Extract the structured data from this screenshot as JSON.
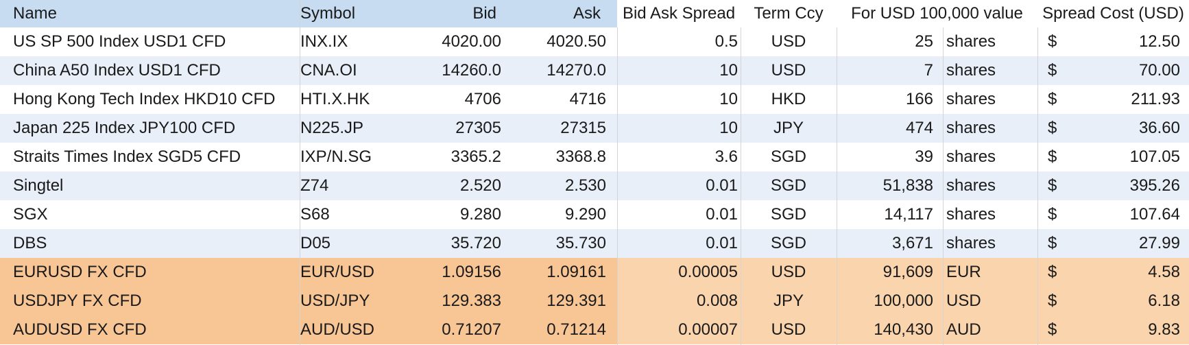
{
  "colors": {
    "header_left_bg": "#c7dbf1",
    "header_right_bg": "#ffffff",
    "stripe_blue": "#e9eff8",
    "white": "#ffffff",
    "fx_left_bg": "#f8c595",
    "fx_right_bg": "#fad4ac",
    "gridline": "#d4d4d4"
  },
  "headers": {
    "name": "Name",
    "symbol": "Symbol",
    "bid": "Bid",
    "ask": "Ask",
    "spread": "Bid Ask Spread",
    "term": "Term Ccy",
    "value": "For USD 100,000 value",
    "cost": "Spread Cost (USD)"
  },
  "rows": [
    {
      "name": "US SP 500 Index USD1 CFD",
      "symbol": "INX.IX",
      "bid": "4020.00",
      "ask": "4020.50",
      "spread": "0.5",
      "term": "USD",
      "qty": "25",
      "unit": "shares",
      "cur": "$",
      "cost": "12.50",
      "style": "white"
    },
    {
      "name": "China A50 Index USD1 CFD",
      "symbol": "CNA.OI",
      "bid": "14260.0",
      "ask": "14270.0",
      "spread": "10",
      "term": "USD",
      "qty": "7",
      "unit": "shares",
      "cur": "$",
      "cost": "70.00",
      "style": "blue"
    },
    {
      "name": "Hong Kong Tech Index HKD10 CFD",
      "symbol": "HTI.X.HK",
      "bid": "4706",
      "ask": "4716",
      "spread": "10",
      "term": "HKD",
      "qty": "166",
      "unit": "shares",
      "cur": "$",
      "cost": "211.93",
      "style": "white"
    },
    {
      "name": "Japan 225 Index JPY100 CFD",
      "symbol": "N225.JP",
      "bid": "27305",
      "ask": "27315",
      "spread": "10",
      "term": "JPY",
      "qty": "474",
      "unit": "shares",
      "cur": "$",
      "cost": "36.60",
      "style": "blue"
    },
    {
      "name": "Straits Times Index SGD5 CFD",
      "symbol": "IXP/N.SG",
      "bid": "3365.2",
      "ask": "3368.8",
      "spread": "3.6",
      "term": "SGD",
      "qty": "39",
      "unit": "shares",
      "cur": "$",
      "cost": "107.05",
      "style": "white"
    },
    {
      "name": "Singtel",
      "symbol": "Z74",
      "bid": "2.520",
      "ask": "2.530",
      "spread": "0.01",
      "term": "SGD",
      "qty": "51,838",
      "unit": "shares",
      "cur": "$",
      "cost": "395.26",
      "style": "blue"
    },
    {
      "name": "SGX",
      "symbol": "S68",
      "bid": "9.280",
      "ask": "9.290",
      "spread": "0.01",
      "term": "SGD",
      "qty": "14,117",
      "unit": "shares",
      "cur": "$",
      "cost": "107.64",
      "style": "white"
    },
    {
      "name": "DBS",
      "symbol": "D05",
      "bid": "35.720",
      "ask": "35.730",
      "spread": "0.01",
      "term": "SGD",
      "qty": "3,671",
      "unit": "shares",
      "cur": "$",
      "cost": "27.99",
      "style": "blue"
    },
    {
      "name": "EURUSD FX CFD",
      "symbol": "EUR/USD",
      "bid": "1.09156",
      "ask": "1.09161",
      "spread": "0.00005",
      "term": "USD",
      "qty": "91,609",
      "unit": "EUR",
      "cur": "$",
      "cost": "4.58",
      "style": "fx"
    },
    {
      "name": "USDJPY FX CFD",
      "symbol": "USD/JPY",
      "bid": "129.383",
      "ask": "129.391",
      "spread": "0.008",
      "term": "JPY",
      "qty": "100,000",
      "unit": "USD",
      "cur": "$",
      "cost": "6.18",
      "style": "fx"
    },
    {
      "name": "AUDUSD FX CFD",
      "symbol": "AUD/USD",
      "bid": "0.71207",
      "ask": "0.71214",
      "spread": "0.00007",
      "term": "USD",
      "qty": "140,430",
      "unit": "AUD",
      "cur": "$",
      "cost": "9.83",
      "style": "fx"
    }
  ]
}
